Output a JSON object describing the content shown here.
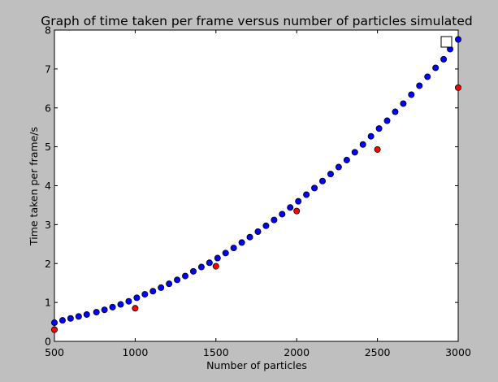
{
  "chart_data": {
    "type": "scatter",
    "title": "Graph of time taken per frame versus number of particles simulated",
    "xlabel": "Number of particles",
    "ylabel": "Time taken per frame/s",
    "xlim": [
      500,
      3000
    ],
    "ylim": [
      0,
      8
    ],
    "x_ticks": [
      500,
      1000,
      1500,
      2000,
      2500,
      3000
    ],
    "y_ticks": [
      0,
      1,
      2,
      3,
      4,
      5,
      6,
      7,
      8
    ],
    "grid": false,
    "legend": "top-right (empty marker box)",
    "series": [
      {
        "color": "#0000ff",
        "marker": "circle",
        "x": [
          500,
          550,
          600,
          650,
          700,
          760,
          810,
          860,
          910,
          960,
          1010,
          1060,
          1110,
          1160,
          1210,
          1260,
          1310,
          1360,
          1410,
          1460,
          1510,
          1560,
          1610,
          1660,
          1710,
          1760,
          1810,
          1860,
          1910,
          1960,
          2010,
          2060,
          2110,
          2160,
          2210,
          2260,
          2310,
          2360,
          2410,
          2460,
          2510,
          2560,
          2610,
          2660,
          2710,
          2760,
          2810,
          2860,
          2910,
          2950,
          3000
        ],
        "y": [
          0.48,
          0.54,
          0.59,
          0.64,
          0.69,
          0.75,
          0.81,
          0.88,
          0.95,
          1.03,
          1.12,
          1.21,
          1.29,
          1.38,
          1.48,
          1.58,
          1.68,
          1.8,
          1.91,
          2.02,
          2.14,
          2.27,
          2.4,
          2.54,
          2.68,
          2.82,
          2.97,
          3.12,
          3.27,
          3.44,
          3.6,
          3.77,
          3.94,
          4.12,
          4.3,
          4.48,
          4.66,
          4.86,
          5.06,
          5.27,
          5.47,
          5.67,
          5.9,
          6.11,
          6.34,
          6.57,
          6.8,
          7.03,
          7.25,
          7.51,
          7.76
        ]
      },
      {
        "color": "#ff0000",
        "marker": "circle",
        "x": [
          500,
          1000,
          1500,
          2000,
          2500,
          3000
        ],
        "y": [
          0.3,
          0.85,
          1.93,
          3.35,
          4.93,
          6.52
        ]
      }
    ]
  }
}
